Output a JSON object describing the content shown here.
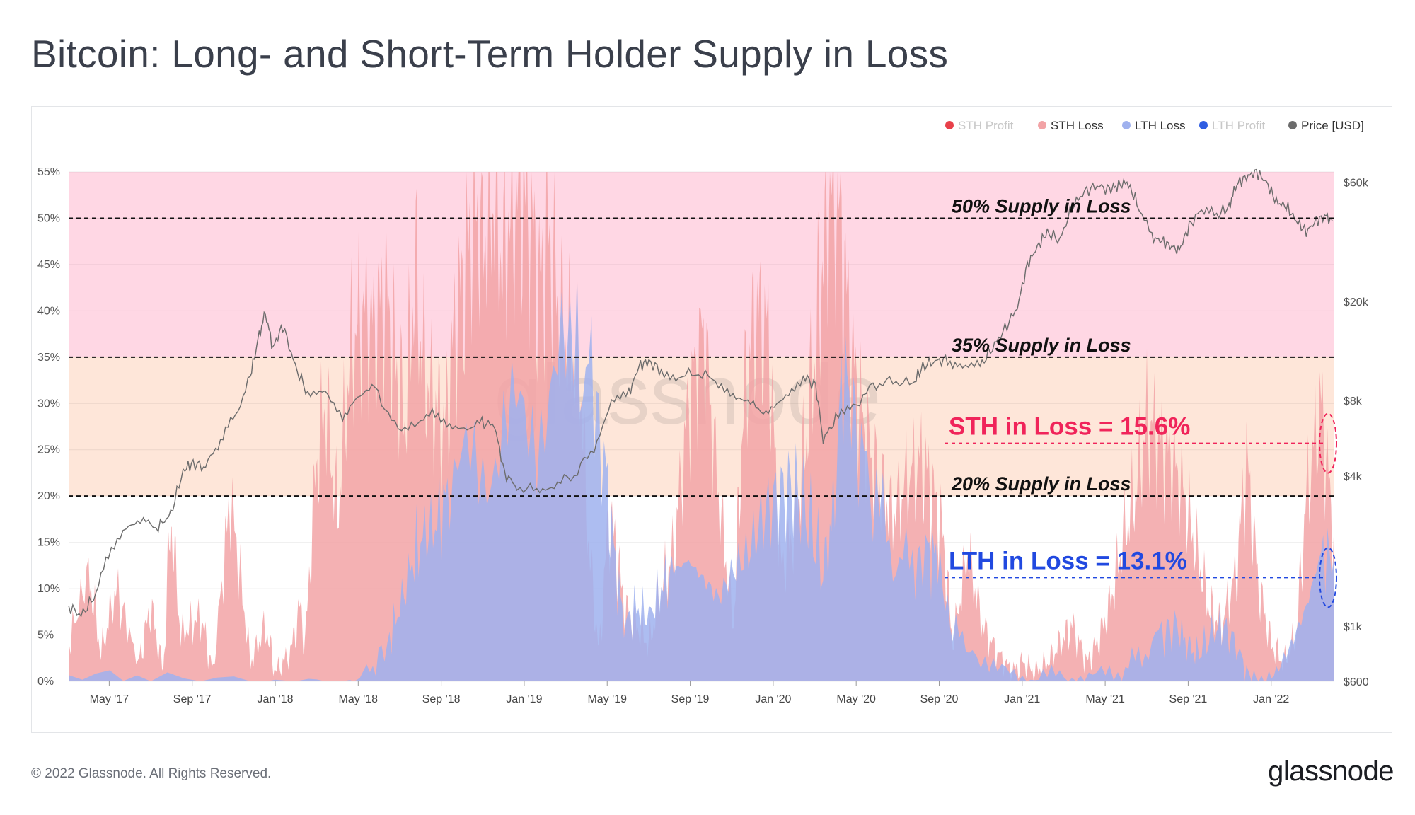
{
  "title": "Bitcoin: Long- and Short-Term Holder Supply in Loss",
  "footer": {
    "copyright": "© 2022 Glassnode. All Rights Reserved.",
    "brand": "glassnode"
  },
  "chart_data": {
    "type": "area",
    "title": "Bitcoin: Long- and Short-Term Holder Supply in Loss",
    "watermark": "glassnode",
    "legend": [
      {
        "name": "STH Profit",
        "color": "#e8404a",
        "active": false
      },
      {
        "name": "STH Loss",
        "color": "#f2a3a6",
        "active": true
      },
      {
        "name": "LTH Loss",
        "color": "#9fb1ee",
        "active": true
      },
      {
        "name": "LTH Profit",
        "color": "#2f5de2",
        "active": false
      },
      {
        "name": "Price [USD]",
        "color": "#6c6c6c",
        "active": true
      }
    ],
    "legend_position": "top-right",
    "y_left": {
      "ticks": [
        "0%",
        "5%",
        "10%",
        "15%",
        "20%",
        "25%",
        "30%",
        "35%",
        "40%",
        "45%",
        "50%",
        "55%"
      ],
      "range": [
        0,
        55
      ]
    },
    "y_right": {
      "scale": "log",
      "ticks": [
        {
          "label": "$600",
          "value": 600
        },
        {
          "label": "$1k",
          "value": 1000
        },
        {
          "label": "$4k",
          "value": 4000
        },
        {
          "label": "$8k",
          "value": 8000
        },
        {
          "label": "$20k",
          "value": 20000
        },
        {
          "label": "$60k",
          "value": 60000
        }
      ]
    },
    "x_ticks": [
      "May '17",
      "Sep '17",
      "Jan '18",
      "May '18",
      "Sep '18",
      "Jan '19",
      "May '19",
      "Sep '19",
      "Jan '20",
      "May '20",
      "Sep '20",
      "Jan '21",
      "May '21",
      "Sep '21",
      "Jan '22"
    ],
    "x_range": [
      2017.17,
      2022.25
    ],
    "zones": [
      {
        "from": 35,
        "to": 55,
        "color": "#ffd7e4"
      },
      {
        "from": 20,
        "to": 35,
        "color": "#fee6d9"
      }
    ],
    "reference_lines": [
      {
        "value": 50,
        "label": "50% Supply in Loss"
      },
      {
        "value": 35,
        "label": "35% Supply in Loss"
      },
      {
        "value": 20,
        "label": "20% Supply in Loss"
      }
    ],
    "annotations": [
      {
        "text": "STH in Loss = 15.6%",
        "value": 25.7,
        "color": "#f0245a"
      },
      {
        "text": "LTH in Loss = 13.1%",
        "value": 11.2,
        "color": "#2149e0"
      }
    ],
    "series": [
      {
        "name": "STH Loss",
        "color": "#f2a3a6",
        "unit": "%",
        "x": [
          2017.17,
          2017.25,
          2017.3,
          2017.36,
          2017.45,
          2017.5,
          2017.55,
          2017.58,
          2017.62,
          2017.7,
          2017.75,
          2017.82,
          2017.9,
          2017.96,
          2018.0,
          2018.06,
          2018.1,
          2018.12,
          2018.16,
          2018.2,
          2018.25,
          2018.3,
          2018.35,
          2018.4,
          2018.44,
          2018.48,
          2018.52,
          2018.56,
          2018.6,
          2018.64,
          2018.68,
          2018.72,
          2018.76,
          2018.8,
          2018.84,
          2018.88,
          2018.91,
          2018.94,
          2018.98,
          2019.02,
          2019.06,
          2019.1,
          2019.14,
          2019.18,
          2019.22,
          2019.26,
          2019.3,
          2019.34,
          2019.37,
          2019.4,
          2019.45,
          2019.5,
          2019.55,
          2019.6,
          2019.66,
          2019.72,
          2019.78,
          2019.84,
          2019.88,
          2019.93,
          2019.98,
          2020.03,
          2020.08,
          2020.13,
          2020.17,
          2020.2,
          2020.23,
          2020.27,
          2020.31,
          2020.36,
          2020.42,
          2020.48,
          2020.54,
          2020.6,
          2020.64,
          2020.68,
          2020.72,
          2020.78,
          2020.84,
          2020.9,
          2020.96,
          2021.0,
          2021.05,
          2021.1,
          2021.15,
          2021.2,
          2021.26,
          2021.3,
          2021.35,
          2021.4,
          2021.45,
          2021.5,
          2021.55,
          2021.6,
          2021.65,
          2021.7,
          2021.75,
          2021.8,
          2021.86,
          2021.9,
          2021.95,
          2022.0,
          2022.05,
          2022.1,
          2022.14,
          2022.2,
          2022.25
        ],
        "values": [
          4,
          12,
          3,
          10,
          2,
          8,
          1,
          18,
          5,
          7,
          1,
          20,
          2,
          6,
          1,
          3,
          8,
          4,
          22,
          30,
          18,
          35,
          40,
          38,
          42,
          35,
          28,
          44,
          33,
          30,
          27,
          38,
          44,
          52,
          48,
          53,
          45,
          50,
          53,
          51,
          42,
          48,
          40,
          36,
          34,
          14,
          3,
          18,
          14,
          8,
          6,
          4,
          10,
          14,
          30,
          38,
          20,
          6,
          30,
          40,
          37,
          12,
          16,
          26,
          36,
          46,
          54,
          50,
          36,
          28,
          22,
          18,
          22,
          24,
          20,
          16,
          4,
          14,
          6,
          3,
          1,
          2,
          1,
          2,
          4,
          6,
          2,
          4,
          8,
          15,
          20,
          28,
          26,
          24,
          20,
          14,
          8,
          6,
          12,
          24,
          10,
          4,
          2,
          5,
          20,
          30,
          15.6
        ]
      },
      {
        "name": "LTH Loss",
        "color": "#9fb1ee",
        "unit": "%",
        "x": [
          2017.17,
          2017.5,
          2017.9,
          2018.1,
          2018.3,
          2018.38,
          2018.45,
          2018.5,
          2018.55,
          2018.6,
          2018.65,
          2018.7,
          2018.8,
          2018.9,
          2019.0,
          2019.1,
          2019.2,
          2019.27,
          2019.33,
          2019.36,
          2019.4,
          2019.45,
          2019.5,
          2019.55,
          2019.6,
          2019.66,
          2019.72,
          2019.78,
          2019.84,
          2019.9,
          2019.96,
          2020.02,
          2020.08,
          2020.14,
          2020.2,
          2020.24,
          2020.28,
          2020.33,
          2020.4,
          2020.48,
          2020.56,
          2020.62,
          2020.66,
          2020.72,
          2020.8,
          2020.9,
          2021.0,
          2021.1,
          2021.2,
          2021.3,
          2021.4,
          2021.48,
          2021.56,
          2021.62,
          2021.66,
          2021.7,
          2021.76,
          2021.8,
          2021.86,
          2021.9,
          2021.96,
          2022.02,
          2022.08,
          2022.14,
          2022.2,
          2022.25
        ],
        "values": [
          0.5,
          0,
          0,
          0,
          0,
          1,
          4,
          8,
          13,
          16,
          17,
          21,
          23,
          26,
          28,
          31,
          34,
          33,
          21,
          14,
          6,
          8,
          7,
          10,
          12,
          13,
          11,
          9,
          12,
          14,
          18,
          20,
          21,
          18,
          12,
          18,
          34,
          28,
          20,
          14,
          12,
          14,
          13,
          5,
          4,
          1,
          0.5,
          0.5,
          0.5,
          0.5,
          1,
          3,
          5,
          6,
          4,
          3,
          5,
          6,
          4,
          1,
          0,
          1,
          4,
          8,
          14,
          13.1
        ]
      },
      {
        "name": "Price [USD]",
        "color": "#6c6c6c",
        "unit": "USD",
        "axis": "right-log",
        "x": [
          2017.17,
          2017.22,
          2017.27,
          2017.33,
          2017.4,
          2017.47,
          2017.53,
          2017.58,
          2017.63,
          2017.67,
          2017.72,
          2017.78,
          2017.84,
          2017.9,
          2017.93,
          2017.96,
          2017.99,
          2018.03,
          2018.08,
          2018.13,
          2018.2,
          2018.27,
          2018.33,
          2018.4,
          2018.48,
          2018.56,
          2018.63,
          2018.7,
          2018.77,
          2018.83,
          2018.88,
          2018.92,
          2018.97,
          2019.05,
          2019.12,
          2019.2,
          2019.28,
          2019.35,
          2019.42,
          2019.46,
          2019.5,
          2019.55,
          2019.62,
          2019.7,
          2019.78,
          2019.85,
          2019.92,
          2019.98,
          2020.05,
          2020.12,
          2020.17,
          2020.2,
          2020.25,
          2020.32,
          2020.4,
          2020.48,
          2020.56,
          2020.6,
          2020.65,
          2020.7,
          2020.76,
          2020.83,
          2020.88,
          2020.93,
          2020.98,
          2021.02,
          2021.06,
          2021.1,
          2021.15,
          2021.2,
          2021.25,
          2021.3,
          2021.35,
          2021.38,
          2021.42,
          2021.46,
          2021.52,
          2021.56,
          2021.6,
          2021.63,
          2021.67,
          2021.72,
          2021.78,
          2021.83,
          2021.86,
          2021.9,
          2021.94,
          2021.98,
          2022.02,
          2022.06,
          2022.1,
          2022.14,
          2022.18,
          2022.22,
          2022.25
        ],
        "values": [
          1200,
          1100,
          1300,
          1900,
          2400,
          2600,
          2500,
          2800,
          4200,
          4500,
          4300,
          5600,
          7000,
          10000,
          14000,
          18000,
          13000,
          16000,
          11000,
          8500,
          9000,
          7000,
          8000,
          9000,
          6300,
          6200,
          7300,
          6500,
          6300,
          6500,
          6400,
          4100,
          3600,
          3500,
          3700,
          4000,
          5200,
          8000,
          8500,
          11000,
          11500,
          10500,
          10000,
          10300,
          9500,
          8200,
          7600,
          7200,
          8500,
          10000,
          9200,
          5600,
          6700,
          7500,
          9200,
          9600,
          9300,
          11000,
          11500,
          11700,
          10600,
          11000,
          13000,
          15500,
          19000,
          28000,
          33000,
          38000,
          35000,
          48000,
          55000,
          58000,
          56000,
          58000,
          60000,
          50000,
          36000,
          35000,
          33000,
          32000,
          40000,
          47000,
          44000,
          48000,
          59000,
          63000,
          66000,
          60000,
          50000,
          48000,
          42000,
          38000,
          42000,
          44000,
          41000
        ]
      }
    ]
  }
}
